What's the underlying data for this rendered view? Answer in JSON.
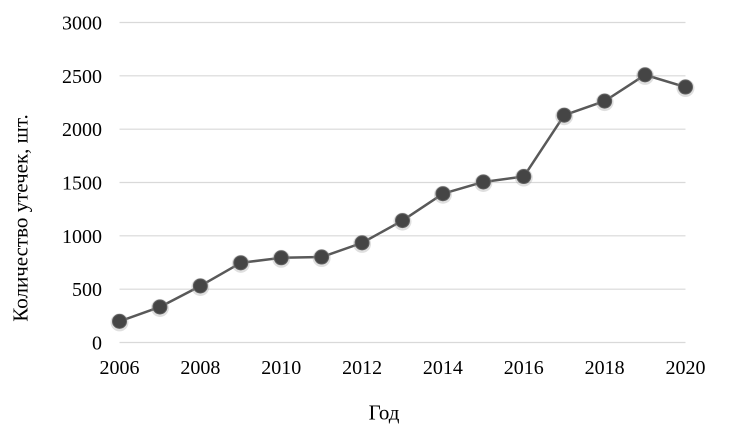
{
  "chart_data": {
    "type": "line",
    "title": "",
    "xlabel": "Год",
    "ylabel": "Количество утечек, шт.",
    "x": [
      2006,
      2007,
      2008,
      2009,
      2010,
      2011,
      2012,
      2013,
      2014,
      2015,
      2016,
      2017,
      2018,
      2019,
      2020
    ],
    "values": [
      198,
      333,
      530,
      747,
      794,
      801,
      934,
      1143,
      1395,
      1505,
      1556,
      2131,
      2263,
      2509,
      2395
    ],
    "ylim": [
      0,
      3000
    ],
    "ytick_step": 500,
    "ytick_labels": [
      "0",
      "500",
      "1000",
      "1500",
      "2000",
      "2500",
      "3000"
    ],
    "xtick_labels": [
      "2006",
      "2008",
      "2010",
      "2012",
      "2014",
      "2016",
      "2018",
      "2020"
    ],
    "grid": "horizontal",
    "legend_position": "none",
    "colors": {
      "line": "#595959",
      "marker": "#454545",
      "marker_halo": "#9b9b9b",
      "gridline": "#d9d9d9",
      "text": "#000000",
      "background": "#ffffff"
    }
  }
}
